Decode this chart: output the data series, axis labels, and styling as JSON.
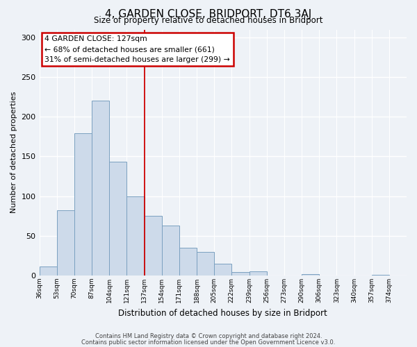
{
  "title": "4, GARDEN CLOSE, BRIDPORT, DT6 3AJ",
  "subtitle": "Size of property relative to detached houses in Bridport",
  "xlabel": "Distribution of detached houses by size in Bridport",
  "ylabel": "Number of detached properties",
  "bin_labels": [
    "36sqm",
    "53sqm",
    "70sqm",
    "87sqm",
    "104sqm",
    "121sqm",
    "137sqm",
    "154sqm",
    "171sqm",
    "188sqm",
    "205sqm",
    "222sqm",
    "239sqm",
    "256sqm",
    "273sqm",
    "290sqm",
    "306sqm",
    "323sqm",
    "340sqm",
    "357sqm",
    "374sqm"
  ],
  "bar_values": [
    11,
    82,
    179,
    220,
    143,
    100,
    75,
    63,
    35,
    30,
    15,
    4,
    5,
    0,
    0,
    2,
    0,
    0,
    0,
    1,
    0
  ],
  "bar_color": "#cddaea",
  "bar_edge_color": "#7aA0c0",
  "vline_x": 6.0,
  "vline_color": "#cc0000",
  "annotation_text": "4 GARDEN CLOSE: 127sqm\n← 68% of detached houses are smaller (661)\n31% of semi-detached houses are larger (299) →",
  "annotation_box_color": "#ffffff",
  "annotation_box_edge": "#cc0000",
  "ylim": [
    0,
    310
  ],
  "yticks": [
    0,
    50,
    100,
    150,
    200,
    250,
    300
  ],
  "footer_line1": "Contains HM Land Registry data © Crown copyright and database right 2024.",
  "footer_line2": "Contains public sector information licensed under the Open Government Licence v3.0.",
  "bg_color": "#eef2f7"
}
